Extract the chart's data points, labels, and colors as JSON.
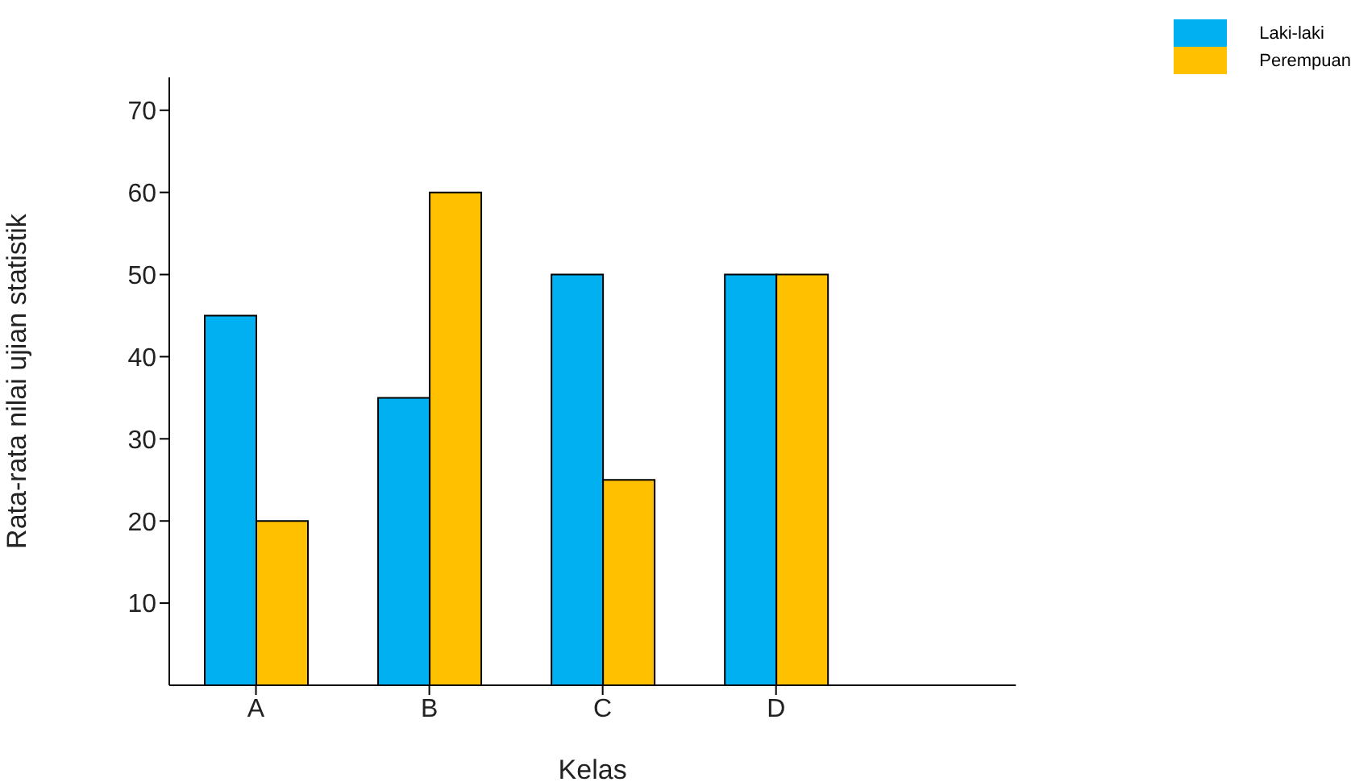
{
  "chart_data": {
    "type": "bar",
    "xlabel": "Kelas",
    "ylabel": "Rata-rata nilai ujian statistik",
    "categories": [
      "A",
      "B",
      "C",
      "D"
    ],
    "series": [
      {
        "name": "Laki-laki",
        "color": "#00b0f0",
        "values": [
          45,
          35,
          50,
          50
        ]
      },
      {
        "name": "Perempuan",
        "color": "#ffc000",
        "values": [
          20,
          60,
          25,
          50
        ]
      }
    ],
    "ylim": [
      0,
      74
    ],
    "yticks": [
      10,
      20,
      30,
      40,
      50,
      60,
      70
    ],
    "grid": false,
    "legend": "top right"
  }
}
